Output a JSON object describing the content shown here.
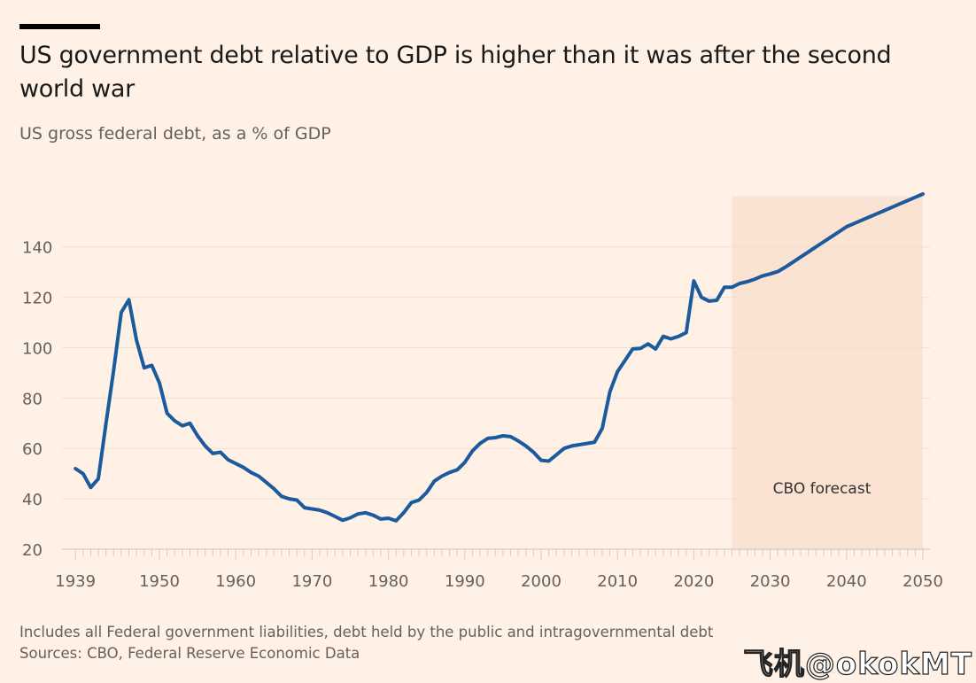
{
  "title": "US government debt relative to GDP is higher than it was after the second world war",
  "subtitle": "US gross federal debt, as a % of GDP",
  "footnote": "Includes all Federal government liabilities, debt held by the public and intragovernmental debt",
  "source": "Sources: CBO, Federal Reserve Economic Data",
  "watermark": "飞机@okokMT",
  "colors": {
    "background": "#fff1e5",
    "line": "#1b5a9c",
    "forecast_shade": "#fbe3d4",
    "grid": "#eee0d6"
  },
  "chart_data": {
    "type": "line",
    "title": "US government debt relative to GDP is higher than it was after the second world war",
    "subtitle": "US gross federal debt, as a % of GDP",
    "xlabel": "",
    "ylabel": "",
    "xlim": [
      1939,
      2050
    ],
    "ylim": [
      20,
      160
    ],
    "x_ticks": [
      1939,
      1950,
      1960,
      1970,
      1980,
      1990,
      2000,
      2010,
      2020,
      2030,
      2040,
      2050
    ],
    "y_ticks": [
      20,
      40,
      60,
      80,
      100,
      120,
      140
    ],
    "grid": "horizontal",
    "annotations": [
      {
        "text": "CBO forecast",
        "shaded_range": [
          2025,
          2050
        ]
      }
    ],
    "series": [
      {
        "x": [
          1939,
          1940,
          1941,
          1942,
          1943,
          1944,
          1945,
          1946,
          1947,
          1948,
          1949,
          1950,
          1951,
          1952,
          1953,
          1954,
          1955,
          1956,
          1957,
          1958,
          1959,
          1960,
          1961,
          1962,
          1963,
          1964,
          1965,
          1966,
          1967,
          1968,
          1969,
          1970,
          1971,
          1972,
          1973,
          1974,
          1975,
          1976,
          1977,
          1978,
          1979,
          1980,
          1981,
          1982,
          1983,
          1984,
          1985,
          1986,
          1987,
          1988,
          1989,
          1990,
          1991,
          1992,
          1993,
          1994,
          1995,
          1996,
          1997,
          1998,
          1999,
          2000,
          2001,
          2002,
          2003,
          2004,
          2005,
          2006,
          2007,
          2008,
          2009,
          2010,
          2011,
          2012,
          2013,
          2014,
          2015,
          2016,
          2017,
          2018,
          2019,
          2020,
          2021,
          2022,
          2023,
          2024,
          2025,
          2026,
          2027,
          2028,
          2029,
          2030,
          2031,
          2032,
          2033,
          2034,
          2035,
          2036,
          2037,
          2038,
          2039,
          2040,
          2041,
          2042,
          2043,
          2044,
          2045,
          2046,
          2047,
          2048,
          2049,
          2050
        ],
        "values": [
          52,
          50,
          44.5,
          48,
          70,
          91,
          114,
          119,
          103,
          92,
          93,
          86,
          74,
          71,
          69,
          70,
          65,
          61,
          58,
          58.5,
          55.5,
          54,
          52.5,
          50.5,
          49,
          46.5,
          44,
          41,
          40,
          39.5,
          36.5,
          36,
          35.5,
          34.5,
          33,
          31.5,
          32.5,
          34,
          34.5,
          33.5,
          32,
          32.3,
          31.3,
          34.5,
          38.5,
          39.5,
          42.5,
          47,
          49,
          50.5,
          51.5,
          54.5,
          59,
          62,
          64,
          64.3,
          65,
          64.7,
          63,
          61,
          58.5,
          55.3,
          55,
          57.5,
          60,
          61,
          61.5,
          62,
          62.5,
          68,
          82.5,
          90.5,
          95,
          99.5,
          99.7,
          101.5,
          99.5,
          104.5,
          103.5,
          104.5,
          106,
          126.5,
          120,
          118.5,
          118.8,
          124,
          124,
          125.5,
          126.2,
          127.2,
          128.5,
          129.3,
          130.2,
          132,
          134,
          136,
          138,
          140,
          142,
          144,
          146,
          148,
          149.3,
          150.6,
          151.9,
          153.2,
          154.5,
          155.8,
          157.1,
          158.4,
          159.7,
          161
        ]
      }
    ]
  }
}
